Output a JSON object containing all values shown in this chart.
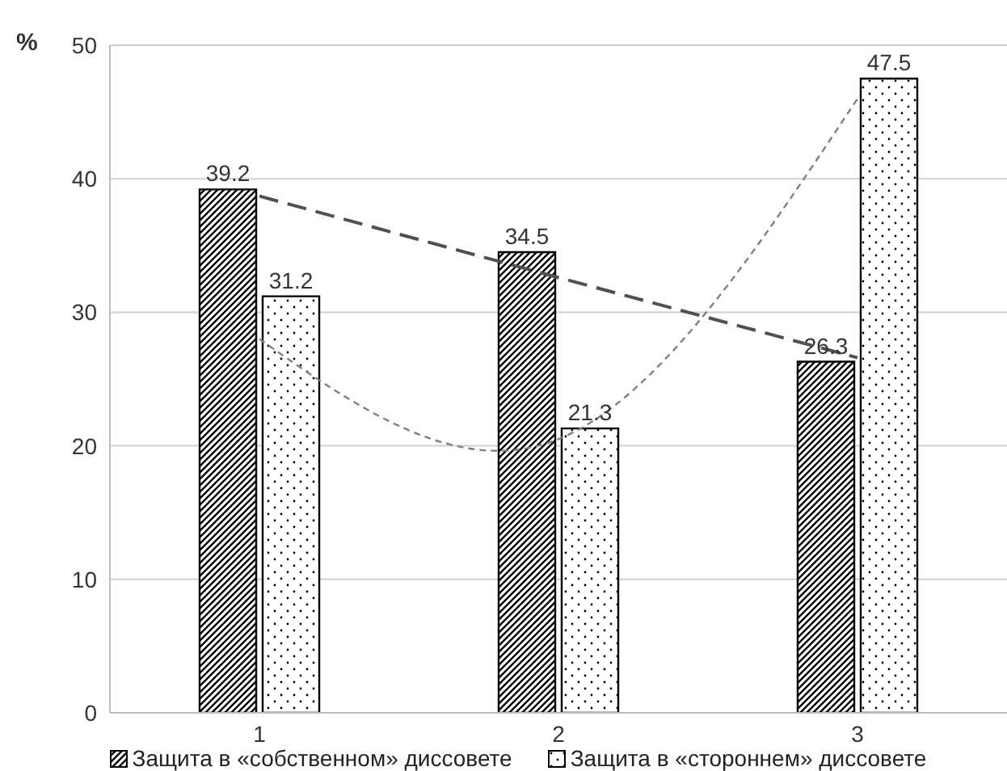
{
  "chart_data": {
    "type": "bar",
    "ylabel": "%",
    "categories": [
      "1",
      "2",
      "3"
    ],
    "series": [
      {
        "name": "Защита в «собственном» диссовете",
        "color": "#000000",
        "values": [
          39.2,
          34.5,
          26.3
        ],
        "value_labels": [
          "39.2",
          "34.5",
          "26.3"
        ]
      },
      {
        "name": "Защита в «стороннем» диссовете",
        "color": "#000000",
        "values": [
          31.2,
          21.3,
          47.5
        ],
        "value_labels": [
          "31.2",
          "21.3",
          "47.5"
        ]
      },
      {
        "type": "line",
        "color": "#505050",
        "line_style": "dashed",
        "values": [
          38.7,
          32.6,
          26.6
        ]
      },
      {
        "type": "line",
        "color": "#808080",
        "line_style": "dotted",
        "values": [
          28,
          20.5,
          46
        ]
      }
    ],
    "ylim": [
      0,
      50
    ],
    "yticks": [
      0,
      10,
      20,
      30,
      40,
      50
    ],
    "grid": "y",
    "legend": "bottom"
  }
}
